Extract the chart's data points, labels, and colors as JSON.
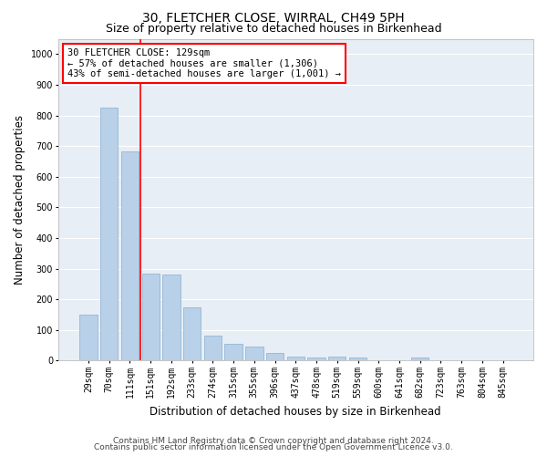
{
  "title": "30, FLETCHER CLOSE, WIRRAL, CH49 5PH",
  "subtitle": "Size of property relative to detached houses in Birkenhead",
  "xlabel": "Distribution of detached houses by size in Birkenhead",
  "ylabel": "Number of detached properties",
  "footnote1": "Contains HM Land Registry data © Crown copyright and database right 2024.",
  "footnote2": "Contains public sector information licensed under the Open Government Licence v3.0.",
  "categories": [
    "29sqm",
    "70sqm",
    "111sqm",
    "151sqm",
    "192sqm",
    "233sqm",
    "274sqm",
    "315sqm",
    "355sqm",
    "396sqm",
    "437sqm",
    "478sqm",
    "519sqm",
    "559sqm",
    "600sqm",
    "641sqm",
    "682sqm",
    "723sqm",
    "763sqm",
    "804sqm",
    "845sqm"
  ],
  "values": [
    150,
    825,
    683,
    283,
    280,
    175,
    80,
    55,
    45,
    25,
    13,
    10,
    12,
    10,
    0,
    0,
    10,
    0,
    0,
    0,
    0
  ],
  "bar_color": "#b8d0e8",
  "bar_edge_color": "#8ab0d0",
  "vline_x": 2.5,
  "vline_color": "red",
  "ylim": [
    0,
    1050
  ],
  "yticks": [
    0,
    100,
    200,
    300,
    400,
    500,
    600,
    700,
    800,
    900,
    1000
  ],
  "annotation_title": "30 FLETCHER CLOSE: 129sqm",
  "annotation_line1": "← 57% of detached houses are smaller (1,306)",
  "annotation_line2": "43% of semi-detached houses are larger (1,001) →",
  "annotation_box_color": "red",
  "bg_color": "#e8eef5",
  "grid_color": "white",
  "title_fontsize": 10,
  "subtitle_fontsize": 9,
  "xlabel_fontsize": 8.5,
  "ylabel_fontsize": 8.5,
  "tick_fontsize": 7,
  "annotation_fontsize": 7.5,
  "footnote_fontsize": 6.5
}
